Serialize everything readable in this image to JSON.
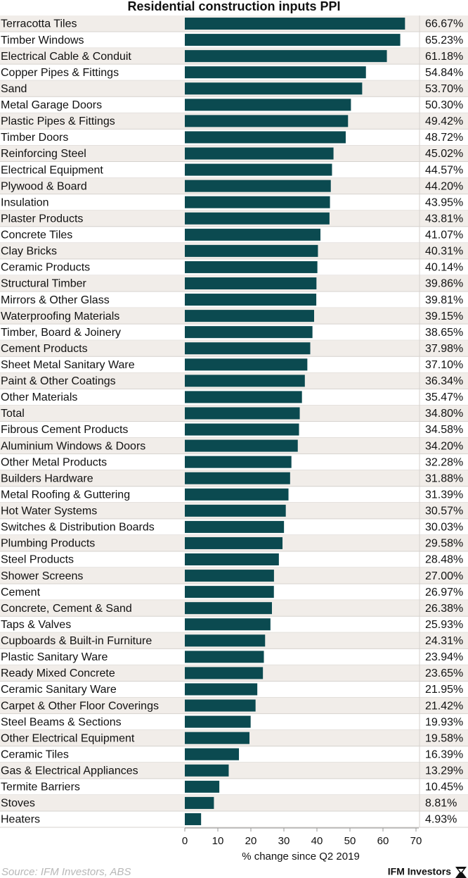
{
  "chart_data": {
    "type": "bar",
    "orientation": "horizontal",
    "title": "Residential construction inputs PPI",
    "categories": [
      "Terracotta Tiles",
      "Timber Windows",
      "Electrical Cable & Conduit",
      "Copper Pipes & Fittings",
      "Sand",
      "Metal Garage Doors",
      "Plastic Pipes & Fittings",
      "Timber Doors",
      "Reinforcing Steel",
      "Electrical Equipment",
      "Plywood & Board",
      "Insulation",
      "Plaster Products",
      "Concrete Tiles",
      "Clay Bricks",
      "Ceramic Products",
      "Structural Timber",
      "Mirrors & Other Glass",
      "Waterproofing Materials",
      "Timber, Board & Joinery",
      "Cement Products",
      "Sheet Metal Sanitary Ware",
      "Paint & Other Coatings",
      "Other Materials",
      "Total",
      "Fibrous Cement Products",
      "Aluminium Windows & Doors",
      "Other Metal Products",
      "Builders Hardware",
      "Metal Roofing & Guttering",
      "Hot Water Systems",
      "Switches & Distribution Boards",
      "Plumbing Products",
      "Steel Products",
      "Shower Screens",
      "Cement",
      "Concrete, Cement & Sand",
      "Taps & Valves",
      "Cupboards & Built-in Furniture",
      "Plastic Sanitary Ware",
      "Ready Mixed Concrete",
      "Ceramic Sanitary Ware",
      "Carpet & Other Floor Coverings",
      "Steel Beams & Sections",
      "Other Electrical Equipment",
      "Ceramic Tiles",
      "Gas & Electrical Appliances",
      "Termite Barriers",
      "Stoves",
      "Heaters"
    ],
    "values": [
      66.67,
      65.23,
      61.18,
      54.84,
      53.7,
      50.3,
      49.42,
      48.72,
      45.02,
      44.57,
      44.2,
      43.95,
      43.81,
      41.07,
      40.31,
      40.14,
      39.86,
      39.81,
      39.15,
      38.65,
      37.98,
      37.1,
      36.34,
      35.47,
      34.8,
      34.58,
      34.2,
      32.28,
      31.88,
      31.39,
      30.57,
      30.03,
      29.58,
      28.48,
      27.0,
      26.97,
      26.38,
      25.93,
      24.31,
      23.94,
      23.65,
      21.95,
      21.42,
      19.93,
      19.58,
      16.39,
      13.29,
      10.45,
      8.81,
      4.93
    ],
    "value_labels": [
      "66.67%",
      "65.23%",
      "61.18%",
      "54.84%",
      "53.70%",
      "50.30%",
      "49.42%",
      "48.72%",
      "45.02%",
      "44.57%",
      "44.20%",
      "43.95%",
      "43.81%",
      "41.07%",
      "40.31%",
      "40.14%",
      "39.86%",
      "39.81%",
      "39.15%",
      "38.65%",
      "37.98%",
      "37.10%",
      "36.34%",
      "35.47%",
      "34.80%",
      "34.58%",
      "34.20%",
      "32.28%",
      "31.88%",
      "31.39%",
      "30.57%",
      "30.03%",
      "29.58%",
      "28.48%",
      "27.00%",
      "26.97%",
      "26.38%",
      "25.93%",
      "24.31%",
      "23.94%",
      "23.65%",
      "21.95%",
      "21.42%",
      "19.93%",
      "19.58%",
      "16.39%",
      "13.29%",
      "10.45%",
      "8.81%",
      "4.93%"
    ],
    "color": "#0b4a50",
    "xlim": [
      0,
      70
    ],
    "xticks": [
      0,
      10,
      20,
      30,
      40,
      50,
      60,
      70
    ],
    "xlabel": "% change since Q2 2019",
    "source": "Source: IFM Investors, ABS",
    "brand": "IFM Investors"
  }
}
